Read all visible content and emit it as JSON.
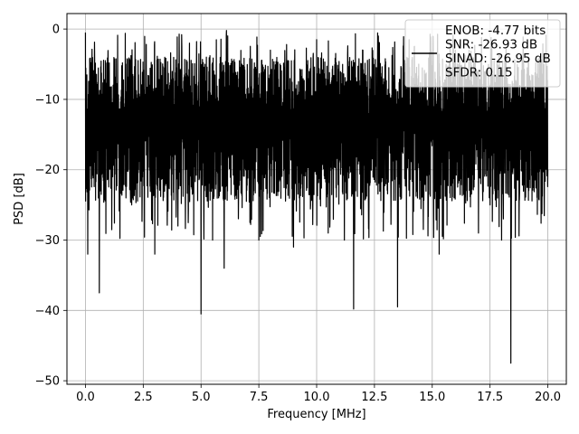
{
  "chart_data": {
    "type": "line",
    "title": "",
    "xlabel": "Frequency [MHz]",
    "ylabel": "PSD [dB]",
    "xlim": [
      -0.8,
      20.8
    ],
    "ylim": [
      -50.5,
      2.2
    ],
    "xticks": [
      0.0,
      2.5,
      5.0,
      7.5,
      10.0,
      12.5,
      15.0,
      17.5,
      20.0
    ],
    "xtick_labels": [
      "0.0",
      "2.5",
      "5.0",
      "7.5",
      "10.0",
      "12.5",
      "15.0",
      "17.5",
      "20.0"
    ],
    "yticks": [
      0,
      -10,
      -20,
      -30,
      -40,
      -50
    ],
    "ytick_labels": [
      "0",
      "−10",
      "−20",
      "−30",
      "−40",
      "−50"
    ],
    "grid": true,
    "legend": {
      "placement": "top-right",
      "entries": [
        "ENOB: -4.77 bits",
        "SNR: -26.93 dB",
        "SINAD: -26.95 dB",
        "SFDR: 0.15"
      ]
    },
    "series": [
      {
        "color": "#000000",
        "x_range": [
          0,
          20
        ],
        "noise_band": {
          "upper": -4,
          "center": -14,
          "lower": -24
        },
        "approx_envelope": [
          [
            0.0,
            -0.5
          ],
          [
            0.1,
            -32
          ],
          [
            0.2,
            -8
          ],
          [
            0.6,
            -37.5
          ],
          [
            1.0,
            -20
          ],
          [
            2.0,
            -25
          ],
          [
            3.0,
            -32
          ],
          [
            4.0,
            -28
          ],
          [
            4.5,
            -2
          ],
          [
            5.0,
            -40.5
          ],
          [
            5.5,
            -30
          ],
          [
            6.0,
            -34
          ],
          [
            6.1,
            -0.2
          ],
          [
            7.5,
            -30
          ],
          [
            8.0,
            -3
          ],
          [
            9.0,
            -31
          ],
          [
            10.0,
            -1.5
          ],
          [
            10.5,
            -29
          ],
          [
            11.2,
            -30
          ],
          [
            11.6,
            -39.8
          ],
          [
            12.0,
            -3
          ],
          [
            13.0,
            -22
          ],
          [
            13.5,
            -39.5
          ],
          [
            14.0,
            -1.5
          ],
          [
            15.3,
            -32
          ],
          [
            16.0,
            -3
          ],
          [
            17.0,
            -29
          ],
          [
            17.5,
            -25
          ],
          [
            18.0,
            -30
          ],
          [
            18.4,
            -47.5
          ],
          [
            19.0,
            -20
          ],
          [
            20.0,
            -20
          ]
        ]
      }
    ]
  }
}
